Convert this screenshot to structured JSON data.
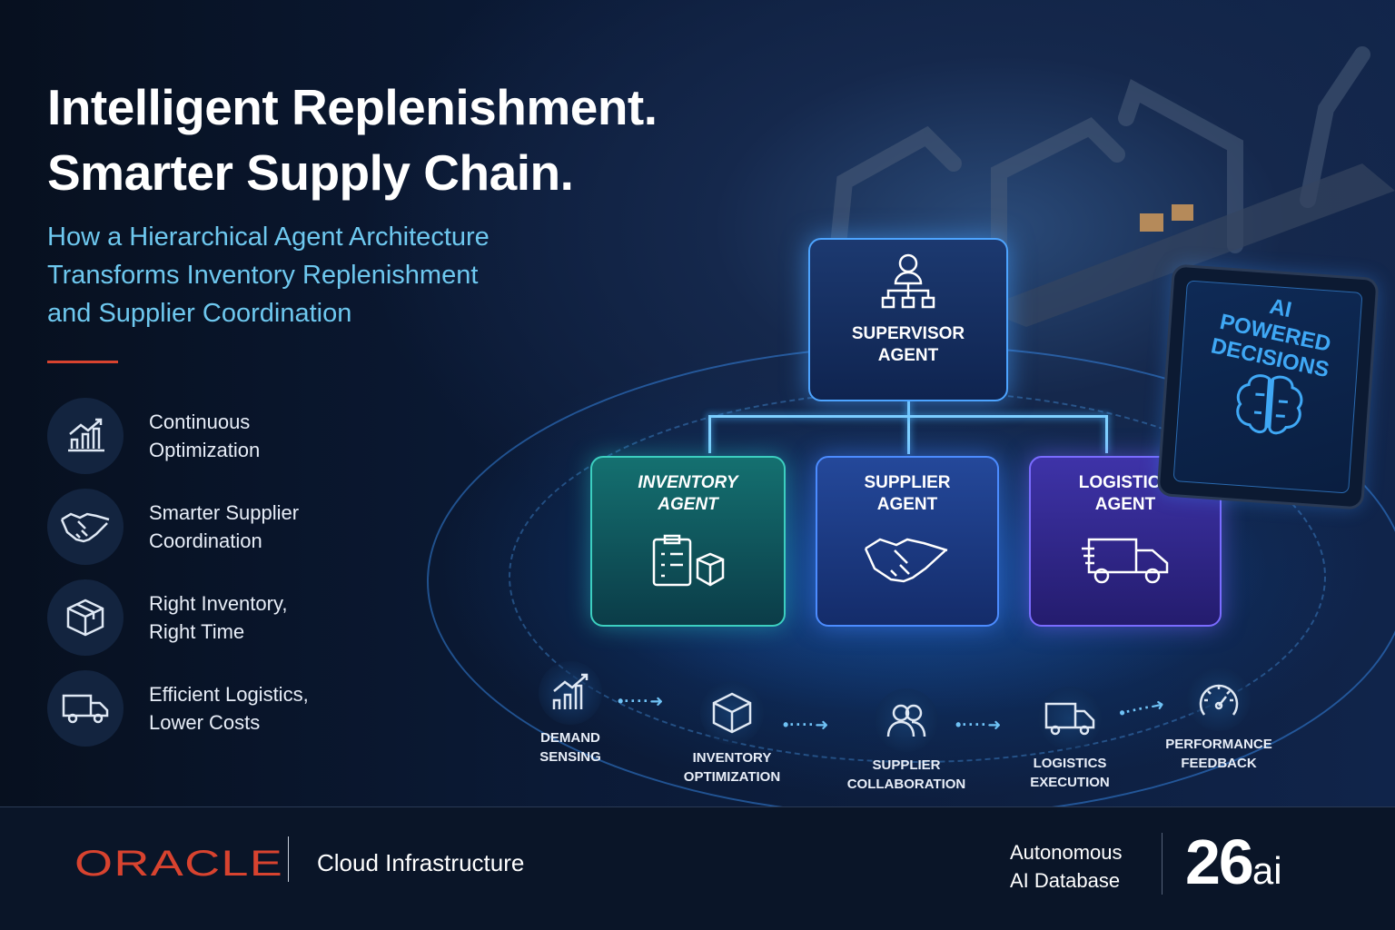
{
  "headline": {
    "line1": "Intelligent Replenishment.",
    "line2": "Smarter Supply Chain."
  },
  "subtitle": {
    "line1": "How a Hierarchical Agent Architecture",
    "line2": "Transforms Inventory Replenishment",
    "line3": "and Supplier Coordination"
  },
  "features": [
    {
      "icon": "growth-chart-icon",
      "line1": "Continuous",
      "line2": "Optimization"
    },
    {
      "icon": "handshake-icon",
      "line1": "Smarter Supplier",
      "line2": "Coordination"
    },
    {
      "icon": "box-icon",
      "line1": "Right Inventory,",
      "line2": "Right Time"
    },
    {
      "icon": "truck-icon",
      "line1": "Efficient Logistics,",
      "line2": "Lower Costs"
    }
  ],
  "diagram": {
    "supervisor": {
      "line1": "SUPERVISOR",
      "line2": "AGENT",
      "icon": "org-hierarchy-icon"
    },
    "agents": [
      {
        "line1": "INVENTORY",
        "line2": "AGENT",
        "icon": "clipboard-box-icon",
        "color": "#136a6a"
      },
      {
        "line1": "SUPPLIER",
        "line2": "AGENT",
        "icon": "handshake-icon",
        "color": "#1c3f8f"
      },
      {
        "line1": "LOGISTICS",
        "line2": "AGENT",
        "icon": "truck-icon",
        "color": "#3a2f9a"
      }
    ],
    "panel": {
      "line1": "AI POWERED",
      "line2": "DECISIONS",
      "icon": "brain-icon"
    }
  },
  "process": [
    {
      "icon": "growth-chart-icon",
      "line1": "DEMAND",
      "line2": "SENSING"
    },
    {
      "icon": "cube-icon",
      "line1": "INVENTORY",
      "line2": "OPTIMIZATION"
    },
    {
      "icon": "users-icon",
      "line1": "SUPPLIER",
      "line2": "COLLABORATION"
    },
    {
      "icon": "truck-icon",
      "line1": "LOGISTICS",
      "line2": "EXECUTION"
    },
    {
      "icon": "gauge-icon",
      "line1": "PERFORMANCE",
      "line2": "FEEDBACK"
    }
  ],
  "footer": {
    "brand": "ORACLE",
    "product": "Cloud Infrastructure",
    "db_line1": "Autonomous",
    "db_line2": "AI Database",
    "version_num": "26",
    "version_suffix": "ai",
    "brand_color": "#d8432f"
  }
}
